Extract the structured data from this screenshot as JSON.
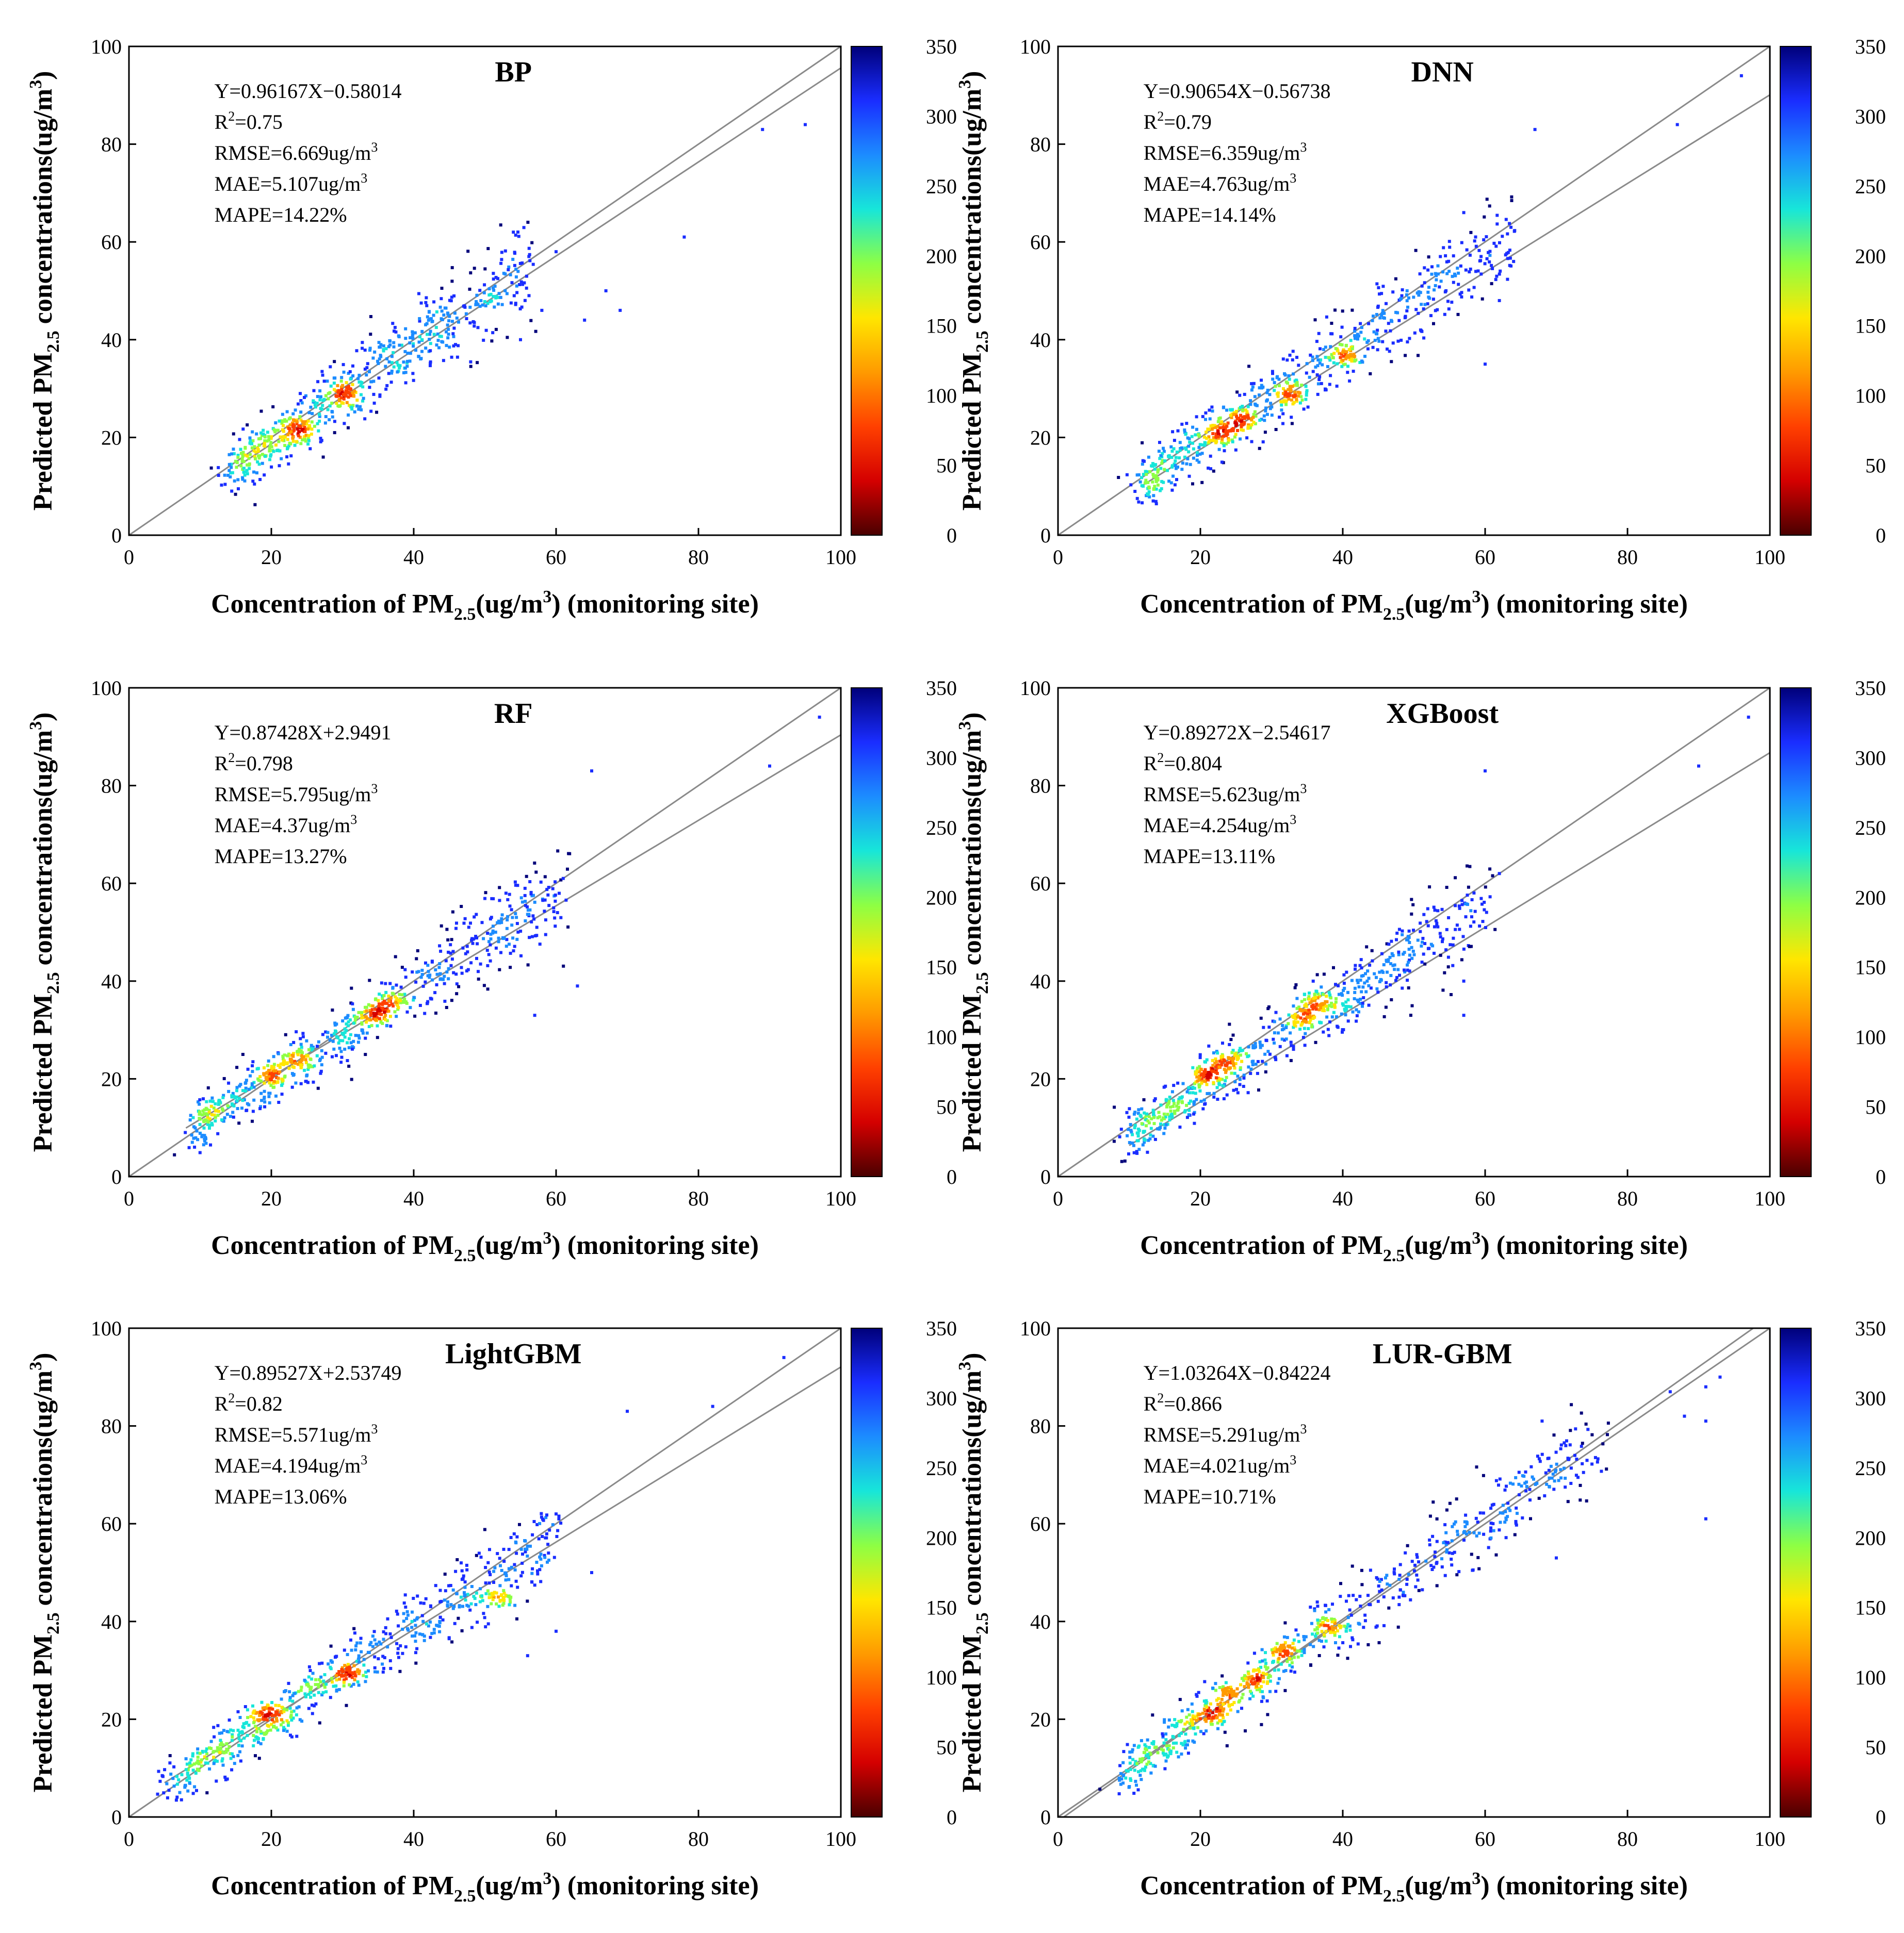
{
  "figure": {
    "colorbar_ticks": [
      "0",
      "50",
      "100",
      "150",
      "200",
      "250",
      "300",
      "350"
    ],
    "colorbar_stops": [
      "#4a0000",
      "#d40000",
      "#ff4000",
      "#ff9a00",
      "#ffe600",
      "#8dff44",
      "#17e6d9",
      "#1c8cff",
      "#1a2dff",
      "#00007a"
    ]
  },
  "chart_data": [
    {
      "type": "scatter",
      "title": "BP",
      "xlabel_parts": [
        "Concentration of PM",
        "2.5",
        "(ug/m",
        "3",
        ") (monitoring site)"
      ],
      "ylabel_parts": [
        "Predicted PM",
        "2.5",
        " concentrations(ug/m",
        "3",
        ")"
      ],
      "xlim": [
        0,
        100
      ],
      "ylim": [
        0,
        100
      ],
      "x_ticks": [
        "0",
        "20",
        "40",
        "60",
        "80",
        "100"
      ],
      "y_ticks": [
        "0",
        "20",
        "40",
        "60",
        "80",
        "100"
      ],
      "density_range": [
        0,
        350
      ],
      "stats": [
        "Y=0.96167X−0.58014",
        "R",
        "=0.75",
        "RMSE=6.669ug/m",
        "MAE=5.107ug/m",
        "MAPE=14.22%"
      ],
      "fit": {
        "slope": 0.96167,
        "intercept": -0.58014,
        "x_range": [
          15,
          100
        ]
      },
      "cloud": {
        "x_range": [
          15,
          57
        ],
        "y_offset": 0,
        "spread": 5.0
      },
      "hotspots": [
        [
          24,
          21.5
        ],
        [
          30,
          28.5
        ]
      ],
      "outliers": [
        [
          89,
          83
        ],
        [
          95,
          84
        ],
        [
          78,
          61
        ],
        [
          67,
          50
        ],
        [
          69,
          46
        ],
        [
          64,
          44
        ],
        [
          60,
          58
        ],
        [
          58,
          46
        ],
        [
          55,
          40
        ],
        [
          54,
          62
        ]
      ]
    },
    {
      "type": "scatter",
      "title": "DNN",
      "xlabel_parts": [
        "Concentration of PM",
        "2.5",
        "(ug/m",
        "3",
        ") (monitoring site)"
      ],
      "ylabel_parts": [
        "Predicted PM",
        "2.5",
        " concentrations(ug/m",
        "3",
        ")"
      ],
      "xlim": [
        0,
        100
      ],
      "ylim": [
        0,
        100
      ],
      "x_ticks": [
        "0",
        "20",
        "40",
        "60",
        "80",
        "100"
      ],
      "y_ticks": [
        "0",
        "20",
        "40",
        "60",
        "80",
        "100"
      ],
      "density_range": [
        0,
        350
      ],
      "stats": [
        "Y=0.90654X−0.56738",
        "R",
        "=0.79",
        "RMSE=6.359ug/m",
        "MAE=4.763ug/m",
        "MAPE=14.14%"
      ],
      "fit": {
        "slope": 0.90654,
        "intercept": -0.56738,
        "x_range": [
          12,
          100
        ]
      },
      "cloud": {
        "x_range": [
          12,
          64
        ],
        "y_offset": 0,
        "spread": 4.5
      },
      "hotspots": [
        [
          23,
          21
        ],
        [
          26,
          23
        ],
        [
          33,
          29
        ],
        [
          40.5,
          37
        ]
      ],
      "outliers": [
        [
          96,
          94
        ],
        [
          87,
          84
        ],
        [
          67,
          83
        ],
        [
          64,
          56
        ],
        [
          62,
          48
        ],
        [
          60,
          35
        ],
        [
          57,
          66
        ]
      ]
    },
    {
      "type": "scatter",
      "title": "RF",
      "xlabel_parts": [
        "Concentration of PM",
        "2.5",
        "(ug/m",
        "3",
        ") (monitoring site)"
      ],
      "ylabel_parts": [
        "Predicted PM",
        "2.5",
        " concentrations(ug/m",
        "3",
        ")"
      ],
      "xlim": [
        0,
        100
      ],
      "ylim": [
        0,
        100
      ],
      "x_ticks": [
        "0",
        "20",
        "40",
        "60",
        "80",
        "100"
      ],
      "y_ticks": [
        "0",
        "20",
        "40",
        "60",
        "80",
        "100"
      ],
      "density_range": [
        0,
        350
      ],
      "stats": [
        "Y=0.87428X+2.9491",
        "R",
        "=0.798",
        "RMSE=5.795ug/m",
        "MAE=4.37ug/m",
        "MAPE=13.27%"
      ],
      "fit": {
        "slope": 0.87428,
        "intercept": 2.9491,
        "x_range": [
          8,
          100
        ]
      },
      "cloud": {
        "x_range": [
          9,
          61
        ],
        "y_offset": 0,
        "spread": 4.2
      },
      "hotspots": [
        [
          20,
          21
        ],
        [
          23.5,
          24
        ],
        [
          35,
          33
        ],
        [
          37,
          36
        ]
      ],
      "outliers": [
        [
          97,
          94
        ],
        [
          90,
          84
        ],
        [
          65,
          83
        ],
        [
          63,
          39
        ],
        [
          61,
          61
        ],
        [
          57,
          33
        ]
      ]
    },
    {
      "type": "scatter",
      "title": "XGBoost",
      "xlabel_parts": [
        "Concentration of PM",
        "2.5",
        "(ug/m",
        "3",
        ") (monitoring site)"
      ],
      "ylabel_parts": [
        "Predicted PM",
        "2.5",
        " concentrations(ug/m",
        "3",
        ")"
      ],
      "xlim": [
        0,
        100
      ],
      "ylim": [
        0,
        100
      ],
      "x_ticks": [
        "0",
        "20",
        "40",
        "60",
        "80",
        "100"
      ],
      "y_ticks": [
        "0",
        "20",
        "40",
        "60",
        "80",
        "100"
      ],
      "density_range": [
        0,
        350
      ],
      "stats": [
        "Y=0.89272X−2.54617",
        "R",
        "=0.804",
        "RMSE=5.623ug/m",
        "MAE=4.254ug/m",
        "MAPE=13.11%"
      ],
      "fit": {
        "slope": 0.89272,
        "intercept": -2.54617,
        "x_range": [
          10,
          100
        ]
      },
      "cloud": {
        "x_range": [
          10,
          60
        ],
        "y_offset": 0,
        "spread": 4.2
      },
      "hotspots": [
        [
          20.5,
          21
        ],
        [
          24,
          24
        ],
        [
          35,
          33
        ],
        [
          36.5,
          36
        ]
      ],
      "outliers": [
        [
          97,
          94
        ],
        [
          90,
          84
        ],
        [
          60,
          83
        ],
        [
          62,
          62
        ],
        [
          57,
          40
        ],
        [
          57,
          33
        ]
      ]
    },
    {
      "type": "scatter",
      "title": "LightGBM",
      "xlabel_parts": [
        "Concentration of PM",
        "2.5",
        "(ug/m",
        "3",
        ") (monitoring site)"
      ],
      "ylabel_parts": [
        "Predicted PM",
        "2.5",
        " concentrations(ug/m",
        "3",
        ")"
      ],
      "xlim": [
        0,
        100
      ],
      "ylim": [
        0,
        100
      ],
      "x_ticks": [
        "0",
        "20",
        "40",
        "60",
        "80",
        "100"
      ],
      "y_ticks": [
        "0",
        "20",
        "40",
        "60",
        "80",
        "100"
      ],
      "density_range": [
        0,
        350
      ],
      "stats": [
        "Y=0.89527X+2.53749",
        "R",
        "=0.82",
        "RMSE=5.571ug/m",
        "MAE=4.194ug/m",
        "MAPE=13.06%"
      ],
      "fit": {
        "slope": 0.89527,
        "intercept": 2.53749,
        "x_range": [
          5,
          100
        ]
      },
      "cloud": {
        "x_range": [
          6,
          60
        ],
        "y_offset": 0,
        "spread": 4.0
      },
      "hotspots": [
        [
          19.5,
          21
        ],
        [
          31,
          29
        ],
        [
          52,
          45
        ]
      ],
      "outliers": [
        [
          92,
          94
        ],
        [
          82,
          84
        ],
        [
          70,
          83
        ],
        [
          65,
          50
        ],
        [
          60,
          38
        ],
        [
          56,
          33
        ],
        [
          60,
          62
        ]
      ]
    },
    {
      "type": "scatter",
      "title": "LUR-GBM",
      "xlabel_parts": [
        "Concentration of PM",
        "2.5",
        "(ug/m",
        "3",
        ") (monitoring site)"
      ],
      "ylabel_parts": [
        "Predicted PM",
        "2.5",
        " concentrations(ug/m",
        "3",
        ")"
      ],
      "xlim": [
        0,
        100
      ],
      "ylim": [
        0,
        100
      ],
      "x_ticks": [
        "0",
        "20",
        "40",
        "60",
        "80",
        "100"
      ],
      "y_ticks": [
        "0",
        "20",
        "40",
        "60",
        "80",
        "100"
      ],
      "density_range": [
        0,
        350
      ],
      "stats": [
        "Y=1.03264X−0.84224",
        "R",
        "=0.866",
        "RMSE=5.291ug/m",
        "MAE=4.021ug/m",
        "MAPE=10.71%"
      ],
      "fit": {
        "slope": 1.03264,
        "intercept": -0.84224,
        "x_range": [
          0,
          100
        ]
      },
      "cloud": {
        "x_range": [
          9,
          76
        ],
        "y_offset": 0,
        "spread": 4.5
      },
      "hotspots": [
        [
          21.5,
          21
        ],
        [
          24,
          25
        ],
        [
          28,
          28
        ],
        [
          32,
          34
        ],
        [
          38,
          39
        ]
      ],
      "outliers": [
        [
          93,
          90
        ],
        [
          91,
          88
        ],
        [
          86,
          87
        ],
        [
          88,
          82
        ],
        [
          91,
          81
        ],
        [
          91,
          61
        ],
        [
          70,
          53
        ],
        [
          68,
          81
        ]
      ]
    }
  ]
}
